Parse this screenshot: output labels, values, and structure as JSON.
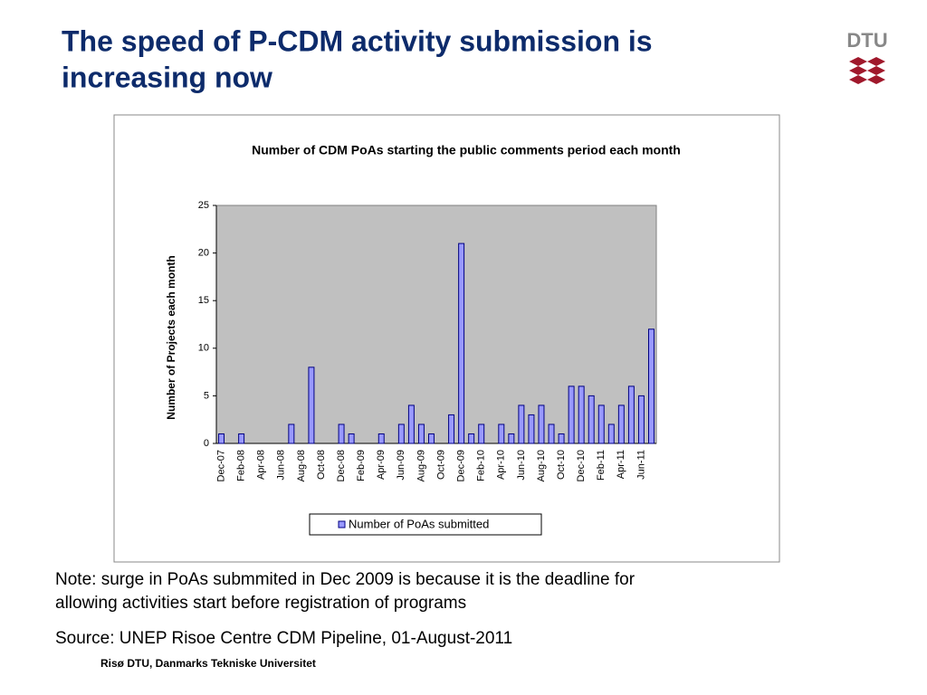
{
  "slide": {
    "title_lines": [
      "The speed of P-CDM activity submission is",
      "increasing now"
    ],
    "note_lines": [
      "Note: surge in PoAs submmited in Dec 2009 is because it is the deadline for",
      "allowing activities start before registration of programs"
    ],
    "source": "Source: UNEP Risoe Centre CDM Pipeline, 01-August-2011",
    "footer": "Risø DTU, Danmarks Tekniske Universitet",
    "logo": "DTU"
  },
  "chart_data": {
    "type": "bar",
    "title": "Number of CDM PoAs starting the public comments period each month",
    "y_label": "Number of Projects each month",
    "categories": [
      "Dec-07",
      null,
      "Feb-08",
      null,
      "Apr-08",
      null,
      "Jun-08",
      null,
      "Aug-08",
      null,
      "Oct-08",
      null,
      "Dec-08",
      null,
      "Feb-09",
      null,
      "Apr-09",
      null,
      "Jun-09",
      null,
      "Aug-09",
      null,
      "Oct-09",
      null,
      "Dec-09",
      null,
      "Feb-10",
      null,
      "Apr-10",
      null,
      "Jun-10",
      null,
      "Aug-10",
      null,
      "Oct-10",
      null,
      "Dec-10",
      null,
      "Feb-11",
      null,
      "Apr-11",
      null,
      "Jun-11",
      null
    ],
    "series": [
      {
        "name": "Number of PoAs submitted",
        "color": "#9999ff",
        "values": [
          1,
          0,
          1,
          0,
          0,
          0,
          0,
          2,
          0,
          8,
          0,
          0,
          2,
          1,
          0,
          0,
          1,
          0,
          2,
          4,
          2,
          1,
          0,
          3,
          21,
          1,
          2,
          0,
          2,
          1,
          4,
          3,
          4,
          2,
          1,
          6,
          6,
          5,
          4,
          2,
          4,
          6,
          5,
          12
        ]
      }
    ],
    "ylim": [
      0,
      25
    ],
    "yticks": [
      0,
      5,
      10,
      15,
      20,
      25
    ],
    "grid": false,
    "legend": "bottom"
  }
}
